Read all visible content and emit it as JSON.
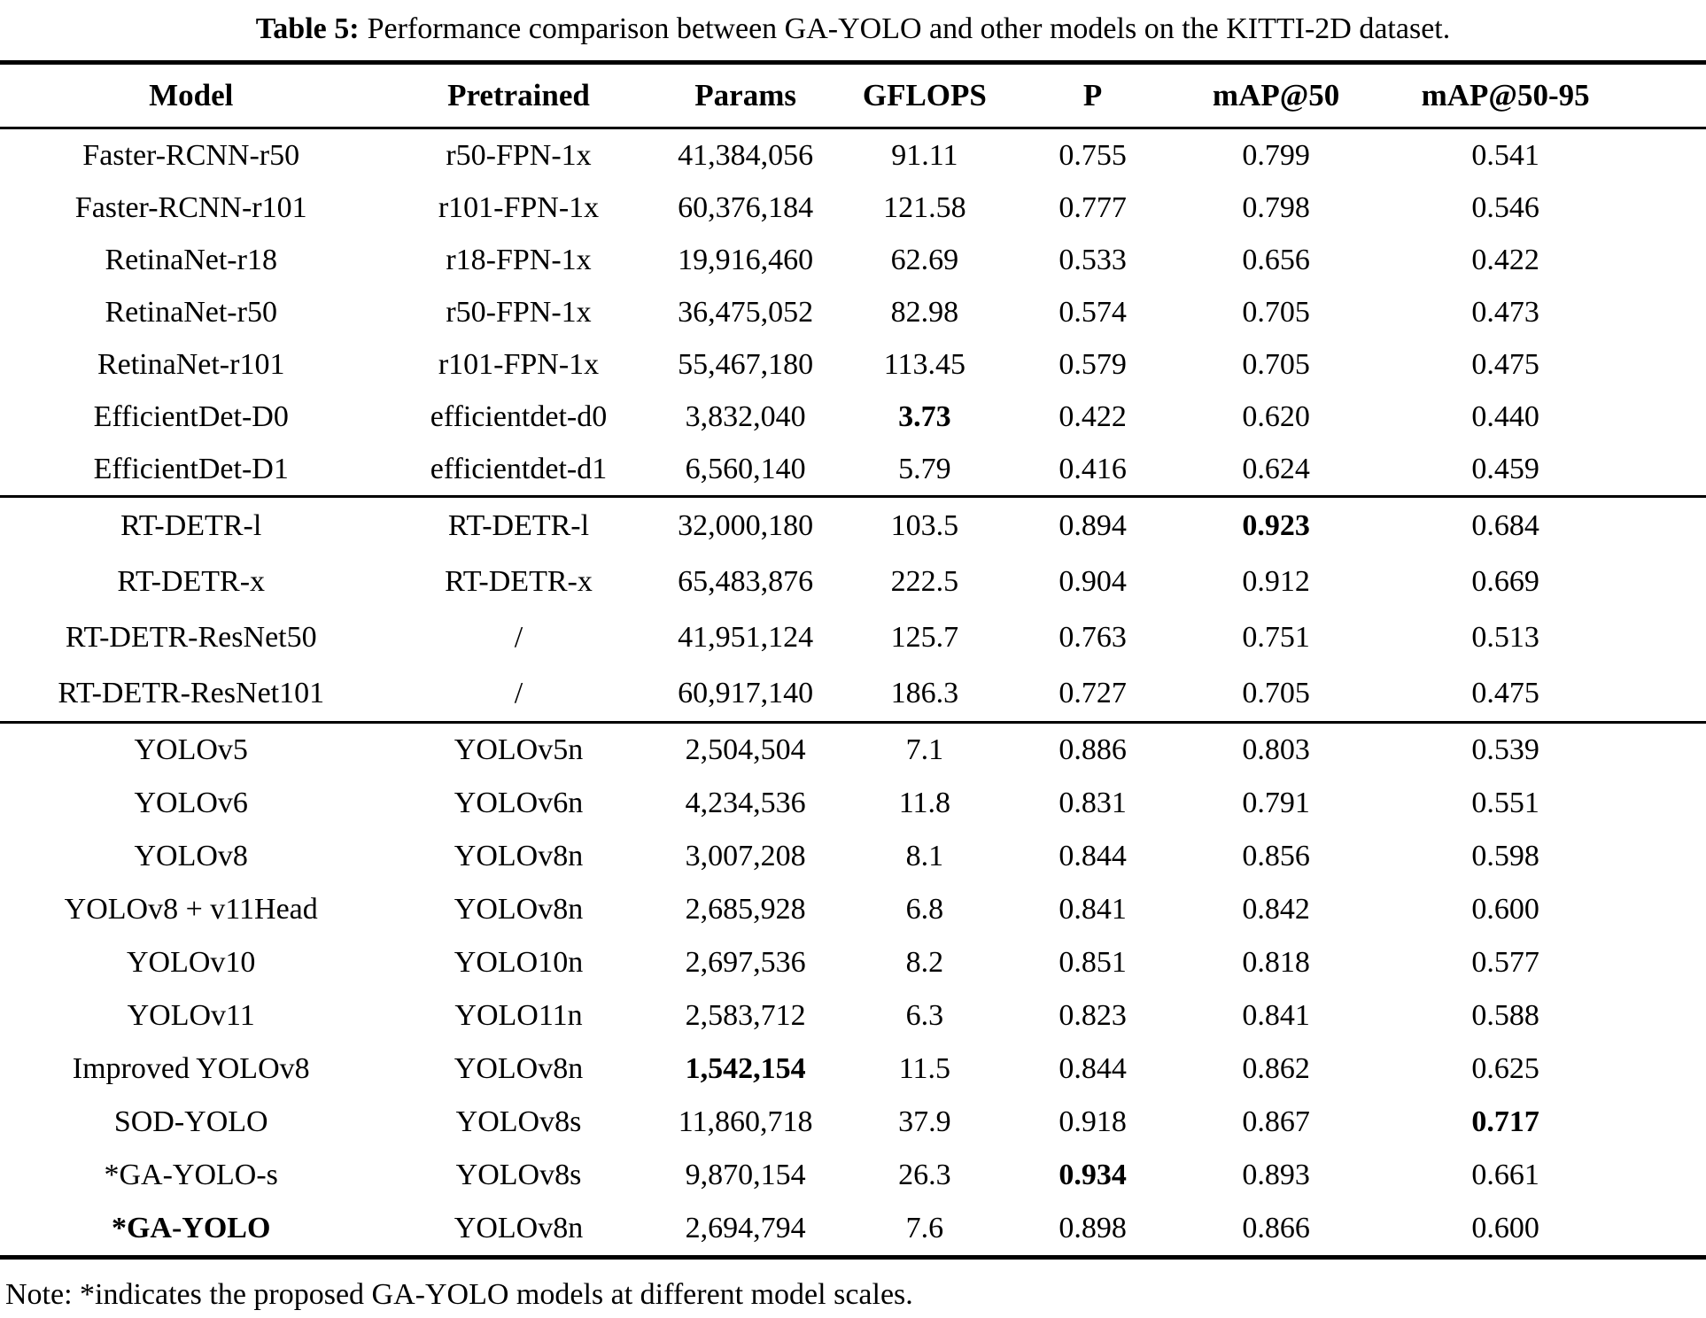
{
  "caption": {
    "label": "Table 5:",
    "text": "Performance comparison between GA-YOLO and other models on the KITTI-2D dataset."
  },
  "table": {
    "headers": [
      "Model",
      "Pretrained",
      "Params",
      "GFLOPS",
      "P",
      "mAP@50",
      "mAP@50-95"
    ],
    "groups": [
      {
        "rows": [
          {
            "cells": [
              "Faster-RCNN-r50",
              "r50-FPN-1x",
              "41,384,056",
              "91.11",
              "0.755",
              "0.799",
              "0.541"
            ],
            "bold": []
          },
          {
            "cells": [
              "Faster-RCNN-r101",
              "r101-FPN-1x",
              "60,376,184",
              "121.58",
              "0.777",
              "0.798",
              "0.546"
            ],
            "bold": []
          },
          {
            "cells": [
              "RetinaNet-r18",
              "r18-FPN-1x",
              "19,916,460",
              "62.69",
              "0.533",
              "0.656",
              "0.422"
            ],
            "bold": []
          },
          {
            "cells": [
              "RetinaNet-r50",
              "r50-FPN-1x",
              "36,475,052",
              "82.98",
              "0.574",
              "0.705",
              "0.473"
            ],
            "bold": []
          },
          {
            "cells": [
              "RetinaNet-r101",
              "r101-FPN-1x",
              "55,467,180",
              "113.45",
              "0.579",
              "0.705",
              "0.475"
            ],
            "bold": []
          },
          {
            "cells": [
              "EfficientDet-D0",
              "efficientdet-d0",
              "3,832,040",
              "3.73",
              "0.422",
              "0.620",
              "0.440"
            ],
            "bold": [
              3
            ]
          },
          {
            "cells": [
              "EfficientDet-D1",
              "efficientdet-d1",
              "6,560,140",
              "5.79",
              "0.416",
              "0.624",
              "0.459"
            ],
            "bold": []
          }
        ]
      },
      {
        "rows": [
          {
            "cells": [
              "RT-DETR-l",
              "RT-DETR-l",
              "32,000,180",
              "103.5",
              "0.894",
              "0.923",
              "0.684"
            ],
            "bold": [
              5
            ]
          },
          {
            "cells": [
              "RT-DETR-x",
              "RT-DETR-x",
              "65,483,876",
              "222.5",
              "0.904",
              "0.912",
              "0.669"
            ],
            "bold": []
          },
          {
            "cells": [
              "RT-DETR-ResNet50",
              "/",
              "41,951,124",
              "125.7",
              "0.763",
              "0.751",
              "0.513"
            ],
            "bold": []
          },
          {
            "cells": [
              "RT-DETR-ResNet101",
              "/",
              "60,917,140",
              "186.3",
              "0.727",
              "0.705",
              "0.475"
            ],
            "bold": []
          }
        ]
      },
      {
        "rows": [
          {
            "cells": [
              "YOLOv5",
              "YOLOv5n",
              "2,504,504",
              "7.1",
              "0.886",
              "0.803",
              "0.539"
            ],
            "bold": []
          },
          {
            "cells": [
              "YOLOv6",
              "YOLOv6n",
              "4,234,536",
              "11.8",
              "0.831",
              "0.791",
              "0.551"
            ],
            "bold": []
          },
          {
            "cells": [
              "YOLOv8",
              "YOLOv8n",
              "3,007,208",
              "8.1",
              "0.844",
              "0.856",
              "0.598"
            ],
            "bold": []
          },
          {
            "cells": [
              "YOLOv8 + v11Head",
              "YOLOv8n",
              "2,685,928",
              "6.8",
              "0.841",
              "0.842",
              "0.600"
            ],
            "bold": []
          },
          {
            "cells": [
              "YOLOv10",
              "YOLO10n",
              "2,697,536",
              "8.2",
              "0.851",
              "0.818",
              "0.577"
            ],
            "bold": []
          },
          {
            "cells": [
              "YOLOv11",
              "YOLO11n",
              "2,583,712",
              "6.3",
              "0.823",
              "0.841",
              "0.588"
            ],
            "bold": []
          },
          {
            "cells": [
              "Improved YOLOv8",
              "YOLOv8n",
              "1,542,154",
              "11.5",
              "0.844",
              "0.862",
              "0.625"
            ],
            "bold": [
              2
            ]
          },
          {
            "cells": [
              "SOD-YOLO",
              "YOLOv8s",
              "11,860,718",
              "37.9",
              "0.918",
              "0.867",
              "0.717"
            ],
            "bold": [
              6
            ]
          },
          {
            "cells": [
              "*GA-YOLO-s",
              "YOLOv8s",
              "9,870,154",
              "26.3",
              "0.934",
              "0.893",
              "0.661"
            ],
            "bold": [
              4
            ]
          },
          {
            "cells": [
              "*GA-YOLO",
              "YOLOv8n",
              "2,694,794",
              "7.6",
              "0.898",
              "0.866",
              "0.600"
            ],
            "bold": [
              0
            ]
          }
        ]
      }
    ]
  },
  "note": "Note: *indicates the proposed GA-YOLO models at different model scales."
}
